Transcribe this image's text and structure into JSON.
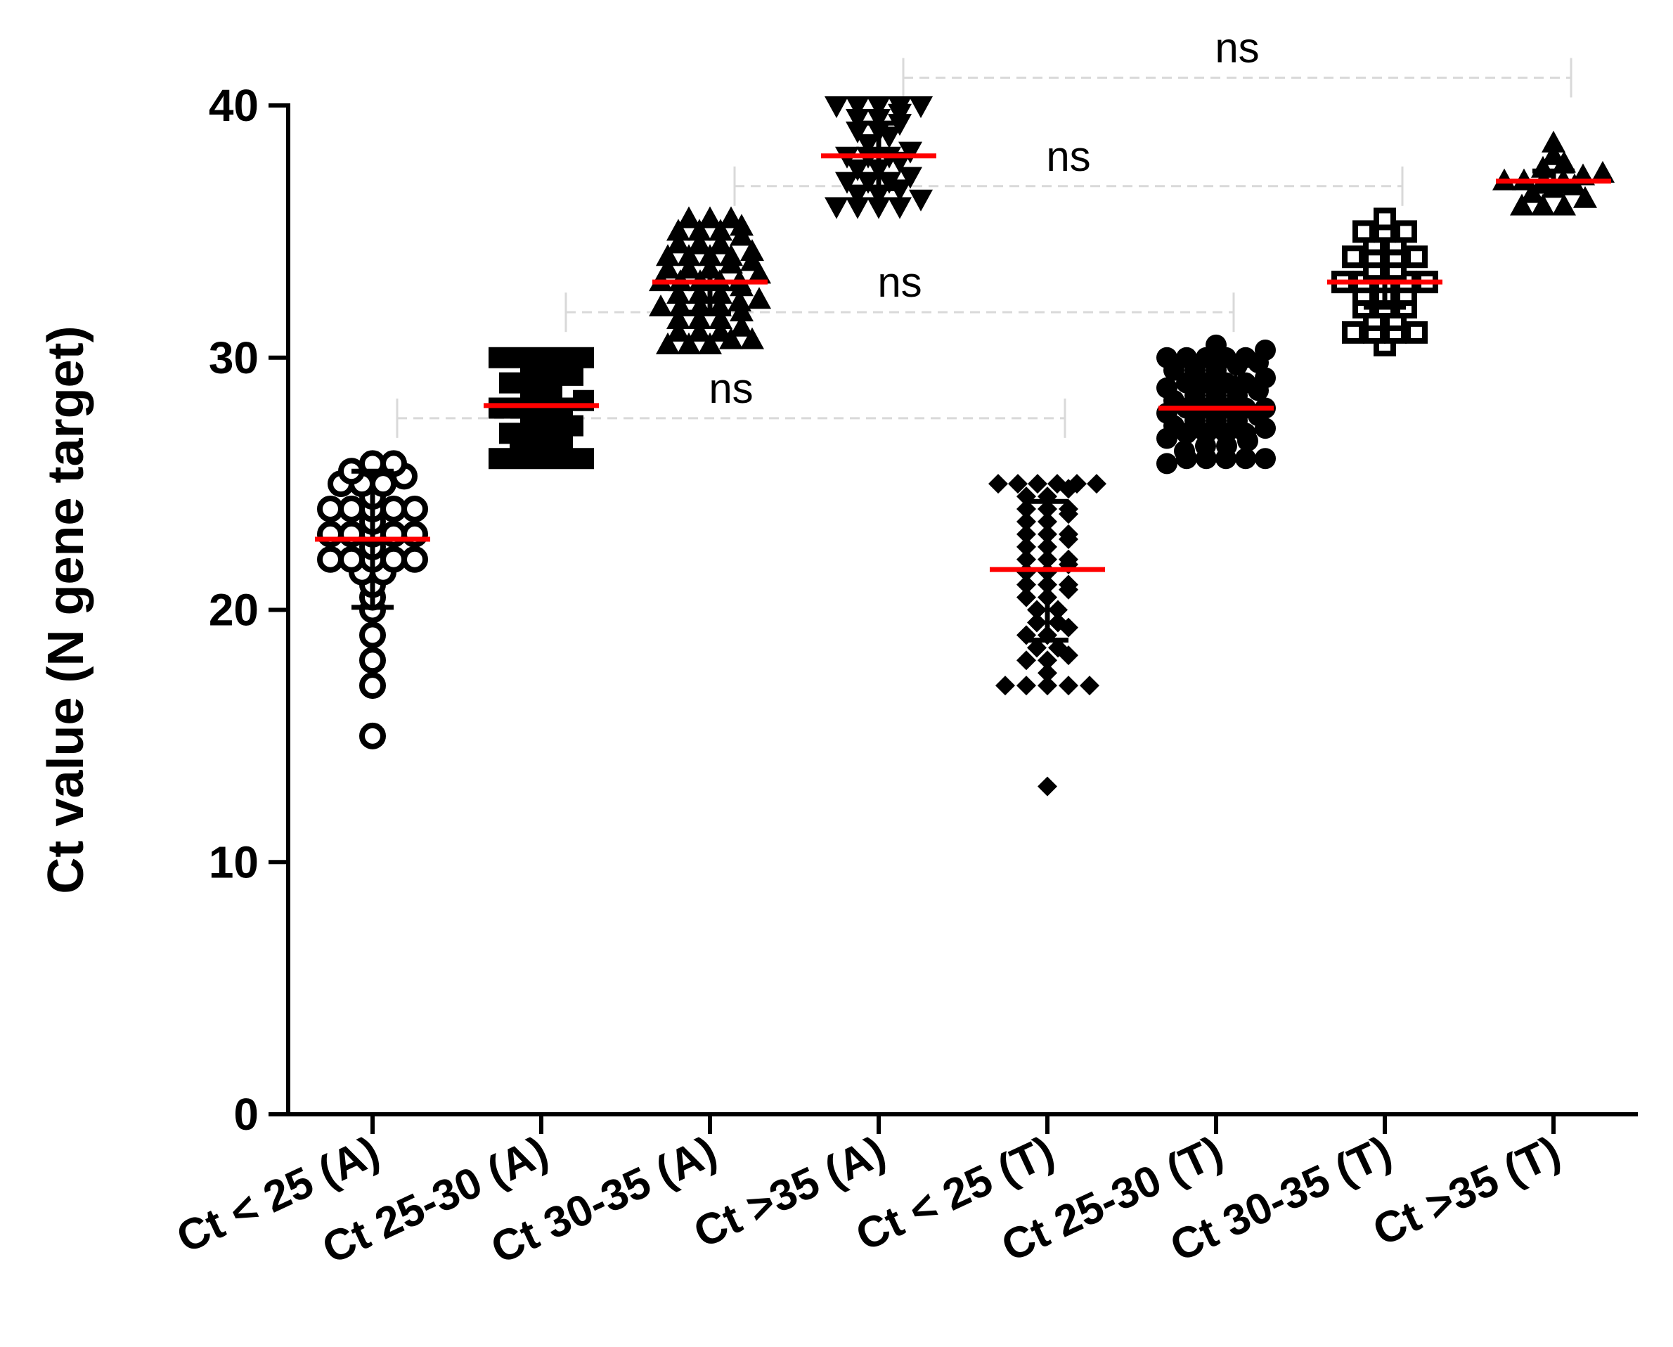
{
  "chart_data": {
    "type": "scatter",
    "subtype": "dot-plot",
    "title": "",
    "xlabel": "",
    "ylabel": "Ct value (N gene target)",
    "ylim": [
      0,
      40
    ],
    "yticks": [
      0,
      10,
      20,
      30,
      40
    ],
    "grid": false,
    "legend": "none",
    "categories": [
      "Ct < 25 (A)",
      "Ct 25-30 (A)",
      "Ct 30-35 (A)",
      "Ct >35 (A)",
      "Ct < 25 (T)",
      "Ct 25-30 (T)",
      "Ct 30-35 (T)",
      "Ct >35 (T)"
    ],
    "series": [
      {
        "category": "Ct < 25 (A)",
        "marker": "open-circle",
        "mean": 22.8,
        "error_low": 20.1,
        "error_high": 25.5,
        "values": [
          15,
          17,
          18,
          19,
          20,
          21,
          21.5,
          22,
          22,
          22,
          22,
          23,
          23,
          23,
          23,
          23.5,
          24,
          24,
          24,
          24,
          24.5,
          25,
          25,
          25,
          25.3,
          25.5,
          25.8,
          25.8,
          22.5,
          23,
          24,
          22,
          21.5,
          20.5
        ]
      },
      {
        "category": "Ct 25-30 (A)",
        "marker": "square",
        "mean": 28.1,
        "error_low": 26.9,
        "error_high": 29.4,
        "values": [
          26,
          26,
          26,
          26,
          26,
          26.5,
          26.5,
          26.8,
          27,
          27,
          27,
          27.3,
          27.5,
          27.5,
          28,
          28,
          28,
          28,
          28.3,
          28.5,
          28.5,
          29,
          29,
          29,
          29.3,
          29.5,
          29.7,
          30,
          30,
          30,
          30,
          30
        ]
      },
      {
        "category": "Ct 30-35 (A)",
        "marker": "triangle-up",
        "mean": 33,
        "error_low": 31.8,
        "error_high": 34.2,
        "values": [
          30.5,
          30.5,
          30.5,
          30.7,
          30.7,
          31,
          31,
          31,
          31.2,
          31.5,
          31.5,
          31.5,
          31.8,
          32,
          32,
          32,
          32,
          32.3,
          32.5,
          32.5,
          32.5,
          32.8,
          33,
          33,
          33,
          33,
          33,
          33.3,
          33.5,
          33.5,
          33.5,
          33.8,
          34,
          34,
          34,
          34,
          34.2,
          34.5,
          34.5,
          34.5,
          34.8,
          35,
          35,
          35,
          35.2,
          35.5,
          35.5,
          35.5,
          32.2,
          33.7
        ]
      },
      {
        "category": "Ct >35 (A)",
        "marker": "triangle-down",
        "mean": 38,
        "error_low": 36.7,
        "error_high": 39.3,
        "values": [
          36,
          36,
          36,
          36,
          36.3,
          36.5,
          36.5,
          36.7,
          37,
          37,
          37,
          37.2,
          37.5,
          37.5,
          37.8,
          38,
          38,
          38,
          38.2,
          38.5,
          38.8,
          39,
          39,
          39.3,
          39.5,
          39.5,
          39.7,
          40,
          40,
          40,
          40,
          40
        ]
      },
      {
        "category": "Ct < 25 (T)",
        "marker": "diamond",
        "mean": 21.6,
        "error_low": 18.8,
        "error_high": 24.3,
        "values": [
          13,
          17,
          17,
          17,
          17,
          17,
          17.5,
          18,
          18,
          18.5,
          18.5,
          19,
          19,
          19.5,
          19.5,
          20,
          20,
          20.5,
          20.5,
          21,
          21,
          21,
          21.5,
          21.5,
          22,
          22,
          22,
          22.5,
          22.5,
          23,
          23,
          23,
          23.5,
          23.5,
          24,
          24,
          24,
          24.5,
          24.5,
          25,
          25,
          25,
          25,
          25,
          25,
          18.2,
          19.3,
          20.8,
          21.8,
          22.8,
          23.8,
          24.8
        ]
      },
      {
        "category": "Ct 25-30 (T)",
        "marker": "circle",
        "mean": 28,
        "error_low": 26.9,
        "error_high": 29.2,
        "values": [
          25.8,
          26,
          26,
          26,
          26,
          26,
          26.3,
          26.5,
          26.5,
          26.7,
          27,
          27,
          27,
          27,
          27.2,
          27.5,
          27.5,
          27.5,
          27.7,
          28,
          28,
          28,
          28,
          28,
          28.3,
          28.5,
          28.5,
          28.5,
          28.7,
          29,
          29,
          29,
          29,
          29.2,
          29.5,
          29.5,
          29.5,
          29.7,
          30,
          30,
          30,
          30,
          30,
          30.3,
          30.5,
          26.8,
          27.8,
          28.8,
          29.8,
          27.3
        ]
      },
      {
        "category": "Ct 30-35 (T)",
        "marker": "open-square",
        "mean": 33,
        "error_low": 32,
        "error_high": 34.2,
        "values": [
          30.5,
          31,
          31,
          31,
          31,
          31.5,
          31.5,
          32,
          32,
          32,
          32.5,
          32.5,
          32.5,
          33,
          33,
          33,
          33,
          33,
          33.5,
          33.5,
          34,
          34,
          34,
          34,
          34.5,
          34.5,
          35,
          35,
          35,
          35.5
        ]
      },
      {
        "category": "Ct >35 (T)",
        "marker": "triangle-up",
        "mean": 37,
        "error_low": 36.6,
        "error_high": 37.4,
        "values": [
          36,
          36,
          36,
          36.3,
          36.5,
          36.7,
          36.8,
          37,
          37,
          37,
          37,
          37.2,
          37.3,
          37.5,
          37.7,
          38,
          38.5
        ]
      }
    ],
    "annotations": [
      {
        "text": "ns",
        "from": "Ct < 25 (A)",
        "to": "Ct < 25 (T)",
        "y": 27.6
      },
      {
        "text": "ns",
        "from": "Ct 25-30 (A)",
        "to": "Ct 25-30 (T)",
        "y": 31.8
      },
      {
        "text": "ns",
        "from": "Ct 30-35 (A)",
        "to": "Ct 30-35 (T)",
        "y": 36.8
      },
      {
        "text": "ns",
        "from": "Ct >35 (A)",
        "to": "Ct >35 (T)",
        "y": 41.1
      }
    ],
    "colors": {
      "points": "#000000",
      "mean_line": "#ff0000",
      "comparison_line": "#d9d9d9",
      "axis": "#000000"
    }
  }
}
